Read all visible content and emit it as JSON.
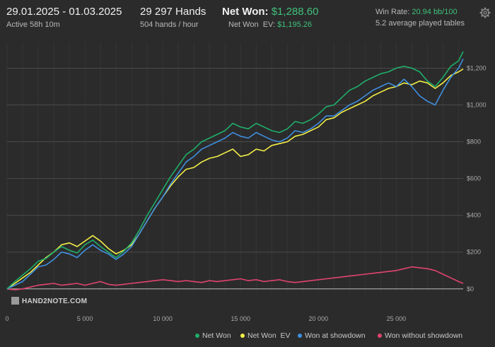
{
  "header": {
    "date_range": "29.01.2025 - 01.03.2025",
    "active": "Active 58h 10m",
    "hands": "29 297 Hands",
    "hands_per_hour": "504 hands / hour",
    "net_won_label": "Net Won:",
    "net_won_value": "$1,288.60",
    "net_won_ev_label": "Net Won  EV:",
    "net_won_ev_value": "$1,195.26",
    "win_rate_label": "Win Rate:",
    "win_rate_value": "20.94 bb/100",
    "tables": "5.2 average played tables"
  },
  "logo_text": "HAND2NOTE.COM",
  "icons": {
    "settings": "gear-icon",
    "logo": "hand2note-logo-icon"
  },
  "colors": {
    "net_won": "#1fae6a",
    "net_won_ev": "#f2ee47",
    "won_at_showdown": "#3f8fe0",
    "won_without_showdown": "#e0446f",
    "accent_green": "#3fc07a"
  },
  "chart_data": {
    "type": "line",
    "x_ticks": [
      0,
      5000,
      10000,
      15000,
      20000,
      25000
    ],
    "x_tick_labels": [
      "0",
      "5 000",
      "10 000",
      "15 000",
      "20 000",
      "25 000"
    ],
    "y_ticks": [
      0,
      200,
      400,
      600,
      800,
      1000,
      1200
    ],
    "y_tick_labels": [
      "$0",
      "$200",
      "$400",
      "$600",
      "$800",
      "$1,000",
      "$1,200"
    ],
    "xlim": [
      0,
      29297
    ],
    "ylim": [
      -20,
      1340
    ],
    "grid": true,
    "legend_position": "bottom-right",
    "series": [
      {
        "name": "Net Won",
        "color_key": "net_won",
        "x": [
          0,
          500,
          1000,
          1500,
          2000,
          2500,
          3000,
          3500,
          4000,
          4500,
          5000,
          5500,
          6000,
          6500,
          7000,
          7500,
          8000,
          8500,
          9000,
          9500,
          10000,
          10500,
          11000,
          11500,
          12000,
          12500,
          13000,
          13500,
          14000,
          14500,
          15000,
          15500,
          16000,
          16500,
          17000,
          17500,
          18000,
          18500,
          19000,
          19500,
          20000,
          20500,
          21000,
          21500,
          22000,
          22500,
          23000,
          23500,
          24000,
          24500,
          25000,
          25500,
          26000,
          26500,
          27000,
          27500,
          28000,
          28500,
          29000,
          29297
        ],
        "y": [
          0,
          40,
          75,
          110,
          150,
          165,
          200,
          230,
          210,
          195,
          240,
          265,
          230,
          200,
          170,
          205,
          250,
          320,
          400,
          470,
          540,
          610,
          670,
          730,
          760,
          800,
          820,
          840,
          860,
          900,
          880,
          870,
          900,
          880,
          860,
          850,
          870,
          910,
          900,
          920,
          950,
          990,
          1000,
          1040,
          1080,
          1100,
          1130,
          1150,
          1170,
          1180,
          1200,
          1210,
          1200,
          1180,
          1130,
          1100,
          1150,
          1210,
          1240,
          1290
        ]
      },
      {
        "name": "Net Won  EV",
        "color_key": "net_won_ev",
        "x": [
          0,
          500,
          1000,
          1500,
          2000,
          2500,
          3000,
          3500,
          4000,
          4500,
          5000,
          5500,
          6000,
          6500,
          7000,
          7500,
          8000,
          8500,
          9000,
          9500,
          10000,
          10500,
          11000,
          11500,
          12000,
          12500,
          13000,
          13500,
          14000,
          14500,
          15000,
          15500,
          16000,
          16500,
          17000,
          17500,
          18000,
          18500,
          19000,
          19500,
          20000,
          20500,
          21000,
          21500,
          22000,
          22500,
          23000,
          23500,
          24000,
          24500,
          25000,
          25500,
          26000,
          26500,
          27000,
          27500,
          28000,
          28500,
          29000,
          29297
        ],
        "y": [
          0,
          30,
          60,
          90,
          130,
          170,
          200,
          240,
          250,
          230,
          260,
          290,
          260,
          220,
          190,
          210,
          240,
          300,
          370,
          440,
          500,
          560,
          610,
          650,
          660,
          690,
          710,
          720,
          740,
          760,
          720,
          730,
          760,
          750,
          780,
          790,
          800,
          830,
          840,
          860,
          880,
          920,
          930,
          960,
          980,
          1000,
          1020,
          1050,
          1070,
          1090,
          1100,
          1120,
          1110,
          1130,
          1120,
          1090,
          1120,
          1160,
          1180,
          1195
        ]
      },
      {
        "name": "Won at showdown",
        "color_key": "won_at_showdown",
        "x": [
          0,
          500,
          1000,
          1500,
          2000,
          2500,
          3000,
          3500,
          4000,
          4500,
          5000,
          5500,
          6000,
          6500,
          7000,
          7500,
          8000,
          8500,
          9000,
          9500,
          10000,
          10500,
          11000,
          11500,
          12000,
          12500,
          13000,
          13500,
          14000,
          14500,
          15000,
          15500,
          16000,
          16500,
          17000,
          17500,
          18000,
          18500,
          19000,
          19500,
          20000,
          20500,
          21000,
          21500,
          22000,
          22500,
          23000,
          23500,
          24000,
          24500,
          25000,
          25500,
          26000,
          26500,
          27000,
          27500,
          28000,
          28500,
          29000,
          29297
        ],
        "y": [
          0,
          20,
          40,
          80,
          120,
          130,
          160,
          200,
          190,
          170,
          210,
          240,
          210,
          190,
          160,
          190,
          230,
          300,
          370,
          440,
          500,
          570,
          630,
          690,
          720,
          760,
          780,
          800,
          820,
          850,
          830,
          820,
          850,
          830,
          810,
          800,
          820,
          860,
          850,
          870,
          900,
          940,
          940,
          970,
          1000,
          1020,
          1050,
          1080,
          1100,
          1120,
          1100,
          1140,
          1100,
          1050,
          1020,
          1000,
          1080,
          1150,
          1200,
          1250
        ]
      },
      {
        "name": "Won without showdown",
        "color_key": "won_without_showdown",
        "x": [
          0,
          500,
          1000,
          1500,
          2000,
          2500,
          3000,
          3500,
          4000,
          4500,
          5000,
          5500,
          6000,
          6500,
          7000,
          7500,
          8000,
          8500,
          9000,
          9500,
          10000,
          10500,
          11000,
          11500,
          12000,
          12500,
          13000,
          13500,
          14000,
          14500,
          15000,
          15500,
          16000,
          16500,
          17000,
          17500,
          18000,
          18500,
          19000,
          19500,
          20000,
          20500,
          21000,
          21500,
          22000,
          22500,
          23000,
          23500,
          24000,
          24500,
          25000,
          25500,
          26000,
          26500,
          27000,
          27500,
          28000,
          28500,
          29000,
          29297
        ],
        "y": [
          0,
          -5,
          0,
          10,
          20,
          25,
          30,
          20,
          25,
          30,
          20,
          30,
          40,
          25,
          20,
          25,
          30,
          35,
          40,
          45,
          50,
          45,
          40,
          45,
          40,
          35,
          45,
          40,
          45,
          50,
          55,
          45,
          50,
          40,
          45,
          50,
          40,
          35,
          40,
          45,
          50,
          55,
          60,
          65,
          70,
          75,
          80,
          85,
          90,
          95,
          100,
          110,
          120,
          115,
          110,
          100,
          80,
          60,
          40,
          30
        ]
      }
    ]
  },
  "legend": [
    {
      "label": "Net Won",
      "color_key": "net_won"
    },
    {
      "label": "Net Won  EV",
      "color_key": "net_won_ev"
    },
    {
      "label": "Won at showdown",
      "color_key": "won_at_showdown"
    },
    {
      "label": "Won without showdown",
      "color_key": "won_without_showdown"
    }
  ]
}
